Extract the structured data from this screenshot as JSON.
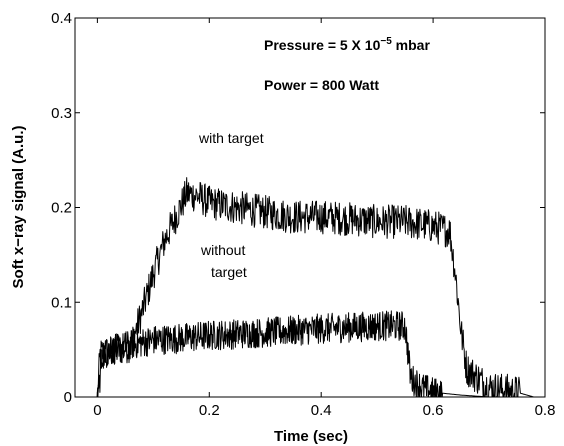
{
  "chart_data": {
    "type": "line",
    "title": "",
    "xlabel": "Time (sec)",
    "ylabel": "Soft x−ray signal (A.u.)",
    "xlim": [
      -0.04,
      0.8
    ],
    "ylim": [
      0,
      0.4
    ],
    "x_ticks": [
      "0",
      "0.2",
      "0.4",
      "0.6",
      "0.8"
    ],
    "y_ticks": [
      "0",
      "0.1",
      "0.2",
      "0.3",
      "0.4"
    ],
    "grid": false,
    "legend": "none",
    "annotations": {
      "pressure_prefix": "Pressure = 5 X 10",
      "pressure_exponent": "−5",
      "pressure_unit": " mbar",
      "power": "Power = 800 Watt",
      "with_target": "with target",
      "without_line1": "without",
      "without_line2": "target"
    },
    "series": [
      {
        "label": "with target",
        "color": "#000000",
        "noise": 0.018,
        "x": [
          -0.02,
          0.0,
          0.005,
          0.02,
          0.04,
          0.06,
          0.08,
          0.1,
          0.12,
          0.14,
          0.16,
          0.18,
          0.2,
          0.25,
          0.3,
          0.35,
          0.4,
          0.45,
          0.5,
          0.55,
          0.6,
          0.63,
          0.64,
          0.65,
          0.66,
          0.7,
          0.75,
          0.78
        ],
        "y": [
          0.0,
          0.0,
          0.045,
          0.048,
          0.05,
          0.055,
          0.09,
          0.13,
          0.165,
          0.19,
          0.215,
          0.212,
          0.205,
          0.2,
          0.195,
          0.19,
          0.19,
          0.188,
          0.185,
          0.185,
          0.18,
          0.175,
          0.13,
          0.07,
          0.03,
          0.01,
          0.005,
          0.0
        ]
      },
      {
        "label": "without target",
        "color": "#000000",
        "noise": 0.016,
        "x": [
          -0.02,
          0.0,
          0.01,
          0.03,
          0.06,
          0.1,
          0.15,
          0.2,
          0.3,
          0.4,
          0.5,
          0.55,
          0.56,
          0.58,
          0.6,
          0.65,
          0.7,
          0.75
        ],
        "y": [
          0.0,
          0.0,
          0.045,
          0.05,
          0.055,
          0.06,
          0.062,
          0.065,
          0.068,
          0.072,
          0.075,
          0.075,
          0.02,
          0.01,
          0.005,
          0.002,
          0.0,
          0.0
        ]
      }
    ]
  }
}
